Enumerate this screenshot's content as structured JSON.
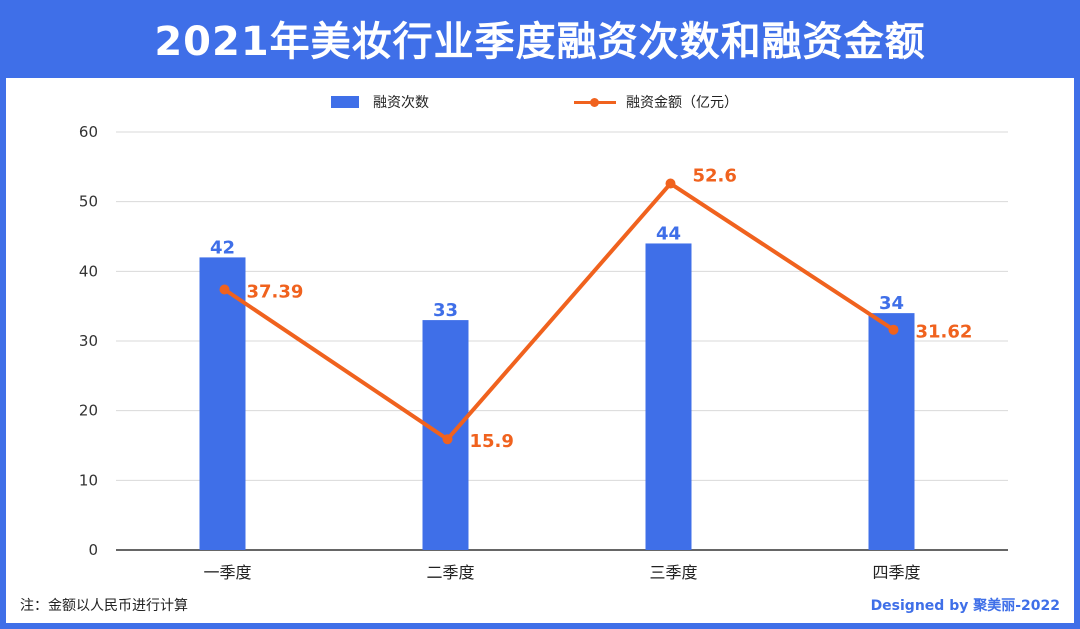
{
  "page": {
    "title": "2021年美妆行业季度融资次数和融资金额"
  },
  "legend": {
    "bar_label": "融资次数",
    "line_label": "融资金额（亿元）"
  },
  "footer": {
    "note": "注：金额以人民币进行计算",
    "credit": "Designed by 聚美丽-2022"
  },
  "colors": {
    "accent": "#3f6fe8",
    "line": "#f0621e",
    "grid": "#d9d9d9"
  },
  "chart_data": {
    "type": "bar",
    "categories": [
      "一季度",
      "二季度",
      "三季度",
      "四季度"
    ],
    "series": [
      {
        "name": "融资次数",
        "type": "bar",
        "values": [
          42,
          33,
          44,
          34
        ]
      },
      {
        "name": "融资金额（亿元）",
        "type": "line",
        "values": [
          37.39,
          15.9,
          52.6,
          31.62
        ]
      }
    ],
    "ylim": [
      0,
      60
    ],
    "yticks": [
      0,
      10,
      20,
      30,
      40,
      50,
      60
    ],
    "grid": true,
    "legend": "top-center"
  }
}
